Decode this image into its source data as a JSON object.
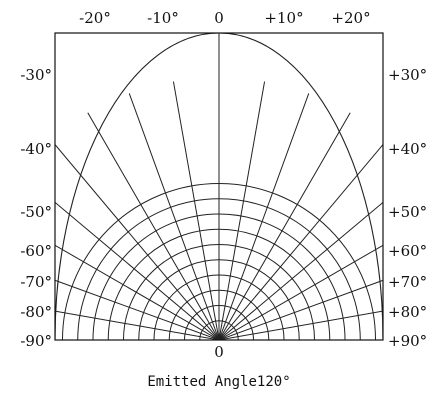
{
  "chart_data": {
    "type": "polar",
    "title": "",
    "xlabel": "Emitted Angle120°",
    "top_ticks": [
      "-20°",
      "-10°",
      "0",
      "+10°",
      "+20°"
    ],
    "left_ticks": [
      "-30°",
      "-40°",
      "-50°",
      "-60°",
      "-70°",
      "-80°",
      "-90°"
    ],
    "right_ticks": [
      "+30°",
      "+40°",
      "+50°",
      "+60°",
      "+70°",
      "+80°",
      "+90°"
    ],
    "bottom_tick": "0",
    "radial_angles_deg": [
      -90,
      -80,
      -70,
      -60,
      -50,
      -40,
      -30,
      -20,
      -10,
      0,
      10,
      20,
      30,
      40,
      50,
      60,
      70,
      80,
      90
    ],
    "relative_intensity_rings": [
      0.1,
      0.2,
      0.3,
      0.4,
      0.5,
      0.6,
      0.7,
      0.8,
      0.9,
      1.0
    ],
    "full_angle_deg": 120,
    "grid": true
  }
}
